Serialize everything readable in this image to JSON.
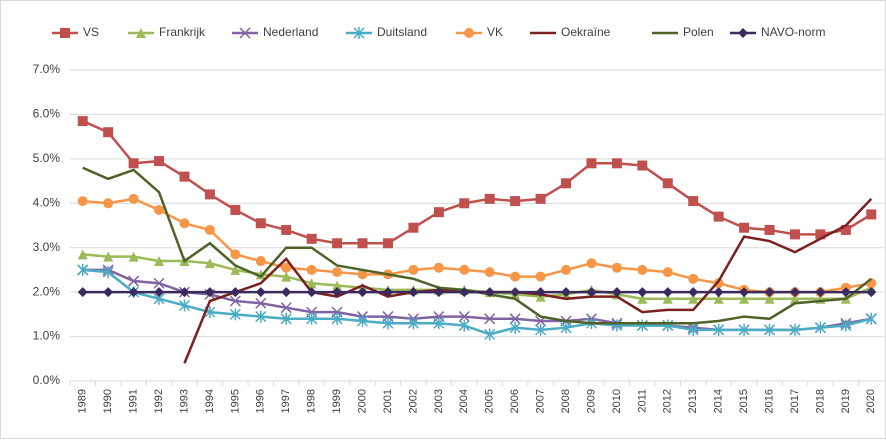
{
  "chart_data": {
    "type": "line",
    "categories": [
      "1989",
      "1990",
      "1991",
      "1992",
      "1993",
      "1994",
      "1995",
      "1996",
      "1997",
      "1998",
      "1999",
      "2000",
      "2001",
      "2002",
      "2003",
      "2004",
      "2005",
      "2006",
      "2007",
      "2008",
      "2009",
      "2010",
      "2011",
      "2012",
      "2013",
      "2014",
      "2015",
      "2016",
      "2017",
      "2018",
      "2019",
      "2020"
    ],
    "ylim": [
      0,
      7
    ],
    "yticks": [
      {
        "value": 0,
        "label": "0.0%"
      },
      {
        "value": 1,
        "label": "1.0%"
      },
      {
        "value": 2,
        "label": "2.0%"
      },
      {
        "value": 3,
        "label": "3.0%"
      },
      {
        "value": 4,
        "label": "4.0%"
      },
      {
        "value": 5,
        "label": "5.0%"
      },
      {
        "value": 6,
        "label": "6.0%"
      },
      {
        "value": 7,
        "label": "7.0%"
      }
    ],
    "grid": true,
    "legend": "top",
    "series": [
      {
        "name": "VS",
        "color": "#c0504d",
        "marker": "square",
        "values": [
          5.85,
          5.6,
          4.9,
          4.95,
          4.6,
          4.2,
          3.85,
          3.55,
          3.4,
          3.2,
          3.1,
          3.1,
          3.1,
          3.45,
          3.8,
          4.0,
          4.1,
          4.05,
          4.1,
          4.45,
          4.9,
          4.9,
          4.85,
          4.45,
          4.05,
          3.7,
          3.45,
          3.4,
          3.3,
          3.3,
          3.4,
          3.75
        ]
      },
      {
        "name": "Frankrijk",
        "color": "#9bbb59",
        "marker": "triangle",
        "values": [
          2.85,
          2.8,
          2.8,
          2.7,
          2.7,
          2.65,
          2.5,
          2.4,
          2.35,
          2.2,
          2.15,
          2.1,
          2.05,
          2.05,
          2.05,
          2.05,
          2.0,
          1.95,
          1.9,
          1.95,
          2.05,
          1.95,
          1.85,
          1.85,
          1.85,
          1.85,
          1.85,
          1.85,
          1.85,
          1.85,
          1.85,
          2.1
        ]
      },
      {
        "name": "Nederland",
        "color": "#8064a2",
        "marker": "x",
        "values": [
          2.5,
          2.5,
          2.25,
          2.2,
          2.0,
          1.95,
          1.8,
          1.75,
          1.65,
          1.55,
          1.55,
          1.45,
          1.45,
          1.4,
          1.45,
          1.45,
          1.4,
          1.4,
          1.35,
          1.35,
          1.4,
          1.3,
          1.25,
          1.25,
          1.2,
          1.15,
          1.15,
          1.15,
          1.15,
          1.2,
          1.3,
          1.4
        ]
      },
      {
        "name": "Duitsland",
        "color": "#4bacc6",
        "marker": "star",
        "values": [
          2.5,
          2.45,
          2.0,
          1.85,
          1.7,
          1.55,
          1.5,
          1.45,
          1.4,
          1.4,
          1.4,
          1.35,
          1.3,
          1.3,
          1.3,
          1.25,
          1.05,
          1.2,
          1.15,
          1.2,
          1.3,
          1.25,
          1.25,
          1.25,
          1.15,
          1.15,
          1.15,
          1.15,
          1.15,
          1.2,
          1.25,
          1.4
        ]
      },
      {
        "name": "VK",
        "color": "#f79646",
        "marker": "circle",
        "values": [
          4.05,
          4.0,
          4.1,
          3.85,
          3.55,
          3.4,
          2.85,
          2.7,
          2.55,
          2.5,
          2.45,
          2.4,
          2.4,
          2.5,
          2.55,
          2.5,
          2.45,
          2.35,
          2.35,
          2.5,
          2.65,
          2.55,
          2.5,
          2.45,
          2.3,
          2.2,
          2.05,
          2.0,
          2.0,
          2.0,
          2.1,
          2.2
        ]
      },
      {
        "name": "Oekraïne",
        "color": "#7b2020",
        "marker": "none",
        "values": [
          null,
          null,
          null,
          null,
          0.4,
          1.8,
          2.0,
          2.2,
          2.75,
          2.0,
          1.9,
          2.15,
          1.9,
          2.0,
          2.05,
          2.0,
          2.0,
          2.0,
          1.95,
          1.85,
          1.9,
          1.9,
          1.55,
          1.6,
          1.6,
          2.25,
          3.25,
          3.15,
          2.9,
          3.2,
          3.5,
          4.1
        ]
      },
      {
        "name": "Polen",
        "color": "#4f6228",
        "marker": "none",
        "values": [
          4.8,
          4.55,
          4.75,
          4.25,
          2.7,
          3.1,
          2.6,
          2.35,
          3.0,
          3.0,
          2.6,
          2.5,
          2.4,
          2.3,
          2.1,
          2.05,
          1.95,
          1.85,
          1.45,
          1.35,
          1.3,
          1.3,
          1.3,
          1.3,
          1.3,
          1.35,
          1.45,
          1.4,
          1.75,
          1.8,
          1.85,
          2.3
        ]
      },
      {
        "name": "NAVO-norm",
        "color": "#3b2a5e",
        "marker": "diamond",
        "values": [
          2,
          2,
          2,
          2,
          2,
          2,
          2,
          2,
          2,
          2,
          2,
          2,
          2,
          2,
          2,
          2,
          2,
          2,
          2,
          2,
          2,
          2,
          2,
          2,
          2,
          2,
          2,
          2,
          2,
          2,
          2,
          2
        ]
      }
    ]
  }
}
